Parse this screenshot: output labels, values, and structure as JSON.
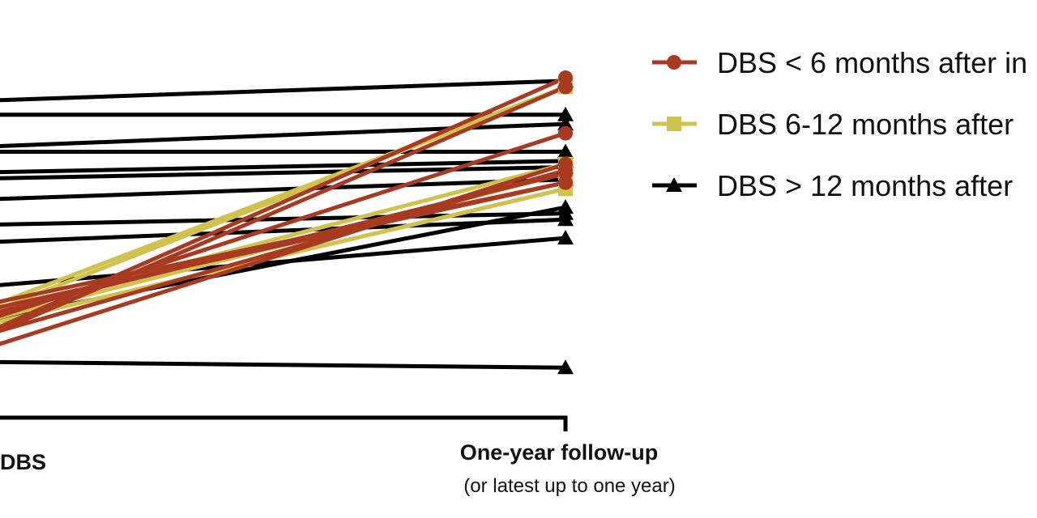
{
  "chart_data": {
    "type": "line",
    "categories": [
      "DBS",
      "One-year follow-up"
    ],
    "category_sublabels": [
      "",
      "(or latest up to one year)"
    ],
    "ylim": [
      0,
      100
    ],
    "grid": false,
    "legend_position": "top-right",
    "colors": {
      "early": "#a83a22",
      "mid": "#cfc24e",
      "late": "#000000"
    },
    "series": [
      {
        "name": "DBS < 6 months after in",
        "group": "early",
        "marker": "circle",
        "lines": [
          [
            5,
            95
          ],
          [
            4,
            92
          ],
          [
            11,
            77
          ],
          [
            18,
            61
          ],
          [
            7,
            65
          ],
          [
            2,
            67
          ],
          [
            16,
            61
          ],
          [
            14,
            64
          ]
        ]
      },
      {
        "name": "DBS 6-12 months after",
        "group": "mid",
        "marker": "square",
        "lines": [
          [
            12,
            92
          ],
          [
            14,
            92
          ],
          [
            14,
            67
          ],
          [
            12,
            64
          ],
          [
            11,
            59
          ],
          [
            11,
            59
          ]
        ]
      },
      {
        "name": "DBS > 12 months after",
        "group": "late",
        "marker": "triangle",
        "lines": [
          [
            87,
            94
          ],
          [
            83,
            83
          ],
          [
            72,
            80
          ],
          [
            71,
            71
          ],
          [
            64,
            68
          ],
          [
            62,
            66
          ],
          [
            55,
            62
          ],
          [
            47,
            51
          ],
          [
            41,
            49
          ],
          [
            26,
            43
          ],
          [
            13,
            53
          ],
          [
            3,
            1
          ]
        ]
      }
    ]
  }
}
